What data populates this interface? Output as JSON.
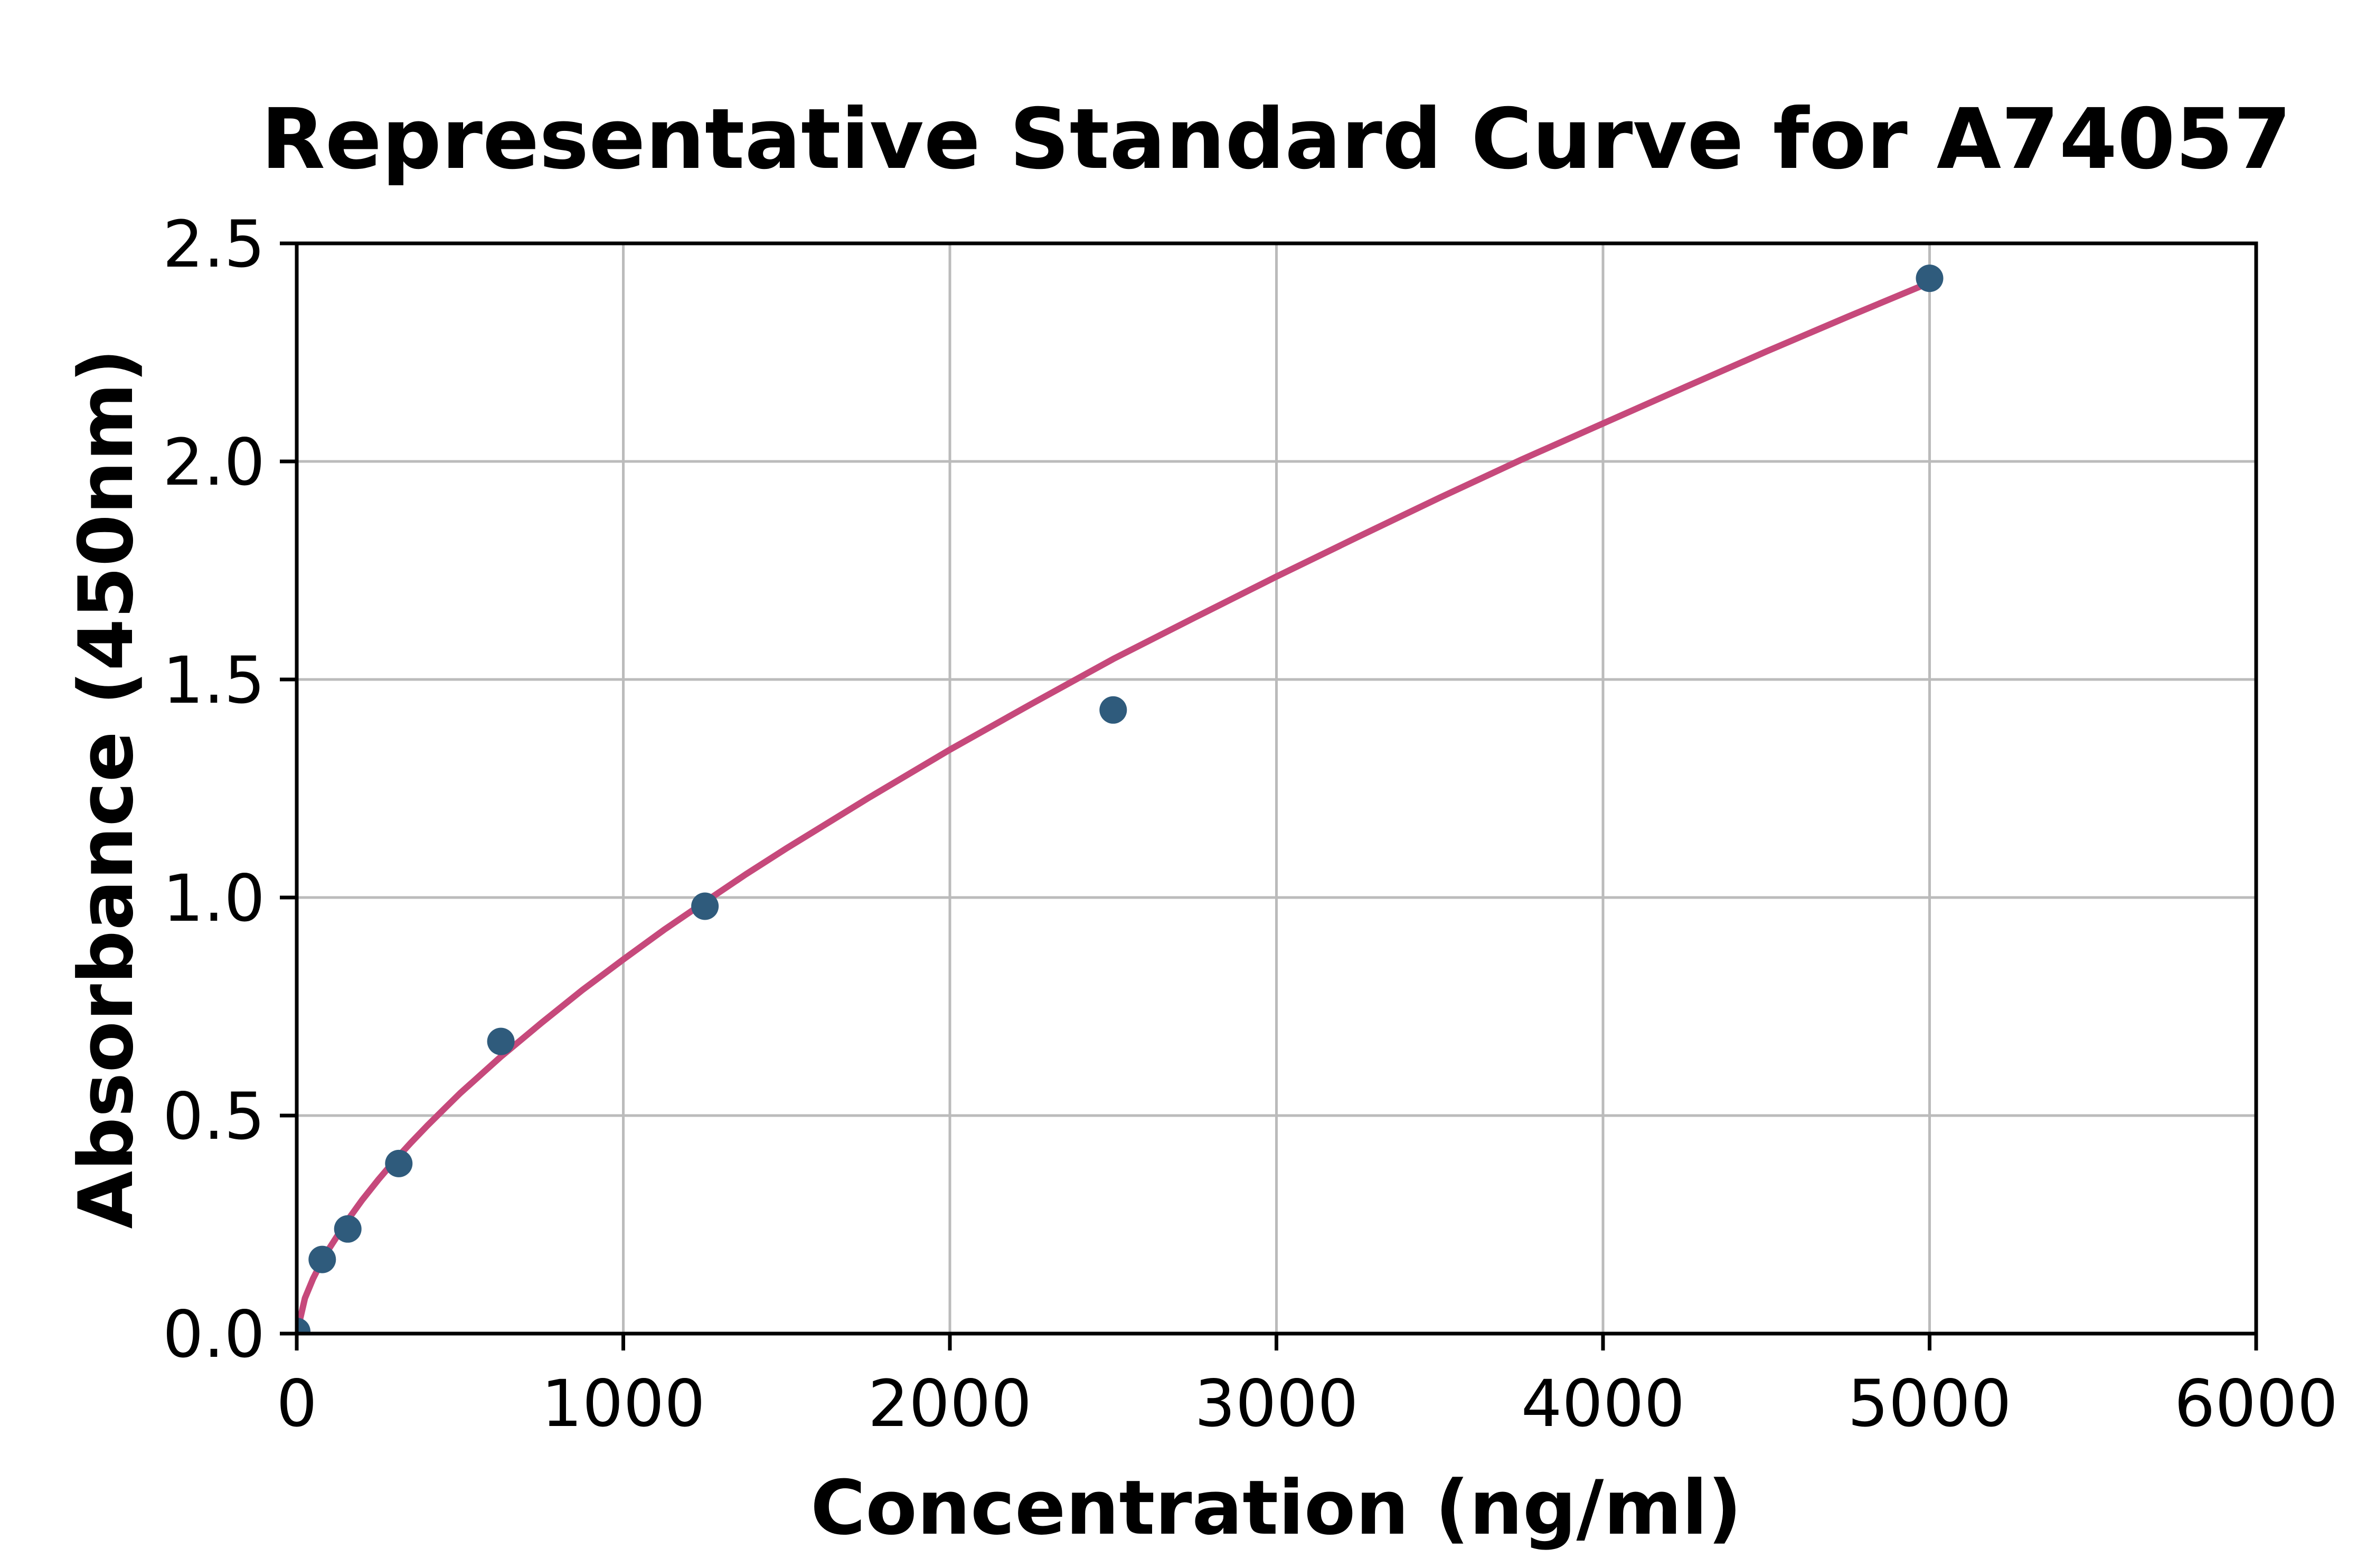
{
  "chart_data": {
    "type": "scatter",
    "title": "Representative Standard Curve for A74057",
    "xlabel": "Concentration (ng/ml)",
    "ylabel": "Absorbance (450nm)",
    "xlim": [
      0,
      6000
    ],
    "ylim": [
      0,
      2.5
    ],
    "x_ticks": [
      0,
      1000,
      2000,
      3000,
      4000,
      5000,
      6000
    ],
    "x_tick_labels": [
      "0",
      "1000",
      "2000",
      "3000",
      "4000",
      "5000",
      "6000"
    ],
    "y_ticks": [
      0,
      0.5,
      1.0,
      1.5,
      2.0,
      2.5
    ],
    "y_tick_labels": [
      "0.0",
      "0.5",
      "1.0",
      "1.5",
      "2.0",
      "2.5"
    ],
    "grid": true,
    "legend": "none",
    "series": [
      {
        "name": "standard-points",
        "type": "scatter",
        "x": [
          0,
          78.1,
          156.3,
          312.5,
          625,
          1250,
          2500,
          5000
        ],
        "y": [
          0.005,
          0.17,
          0.24,
          0.39,
          0.67,
          0.98,
          1.43,
          2.42
        ]
      },
      {
        "name": "fitted-curve",
        "type": "line",
        "points": [
          [
            0,
            0
          ],
          [
            25,
            0.081
          ],
          [
            50,
            0.126
          ],
          [
            75,
            0.163
          ],
          [
            100,
            0.196
          ],
          [
            150,
            0.254
          ],
          [
            200,
            0.306
          ],
          [
            250,
            0.353
          ],
          [
            300,
            0.397
          ],
          [
            350,
            0.438
          ],
          [
            400,
            0.477
          ],
          [
            450,
            0.514
          ],
          [
            500,
            0.551
          ],
          [
            625,
            0.635
          ],
          [
            750,
            0.713
          ],
          [
            875,
            0.788
          ],
          [
            1000,
            0.858
          ],
          [
            1125,
            0.926
          ],
          [
            1250,
            0.99
          ],
          [
            1375,
            1.053
          ],
          [
            1500,
            1.113
          ],
          [
            1750,
            1.228
          ],
          [
            2000,
            1.339
          ],
          [
            2250,
            1.444
          ],
          [
            2500,
            1.547
          ],
          [
            2750,
            1.642
          ],
          [
            3000,
            1.736
          ],
          [
            3250,
            1.827
          ],
          [
            3500,
            1.917
          ],
          [
            3750,
            2.004
          ],
          [
            4000,
            2.087
          ],
          [
            4250,
            2.17
          ],
          [
            4500,
            2.252
          ],
          [
            4750,
            2.332
          ],
          [
            5000,
            2.41
          ]
        ]
      }
    ],
    "colors": {
      "marker": "#2F5B7C",
      "curve": "#C6497B",
      "grid": "#BBBBBB",
      "axis": "#000000",
      "background": "#FFFFFF"
    }
  }
}
